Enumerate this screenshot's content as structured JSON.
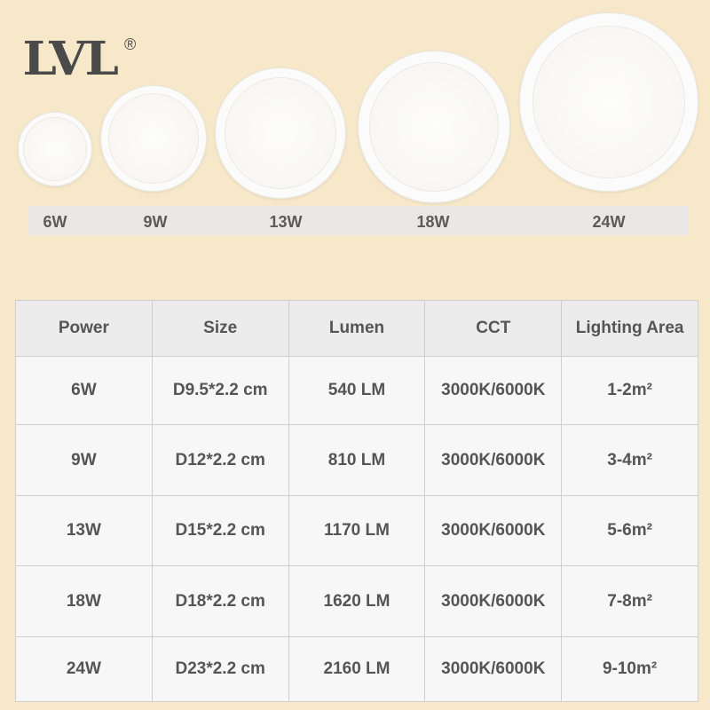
{
  "brand": {
    "logo": "LVL",
    "registered": "®"
  },
  "products": [
    {
      "label": "6W"
    },
    {
      "label": "9W"
    },
    {
      "label": "13W"
    },
    {
      "label": "18W"
    },
    {
      "label": "24W"
    }
  ],
  "table": {
    "headers": [
      "Power",
      "Size",
      "Lumen",
      "CCT",
      "Lighting Area"
    ],
    "rows": [
      [
        "6W",
        "D9.5*2.2 cm",
        "540 LM",
        "3000K/6000K",
        "1-2m²"
      ],
      [
        "9W",
        "D12*2.2 cm",
        "810 LM",
        "3000K/6000K",
        "3-4m²"
      ],
      [
        "13W",
        "D15*2.2 cm",
        "1170 LM",
        "3000K/6000K",
        "5-6m²"
      ],
      [
        "18W",
        "D18*2.2 cm",
        "1620 LM",
        "3000K/6000K",
        "7-8m²"
      ],
      [
        "24W",
        "D23*2.2 cm",
        "2160 LM",
        "3000K/6000K",
        "9-10m²"
      ]
    ]
  }
}
